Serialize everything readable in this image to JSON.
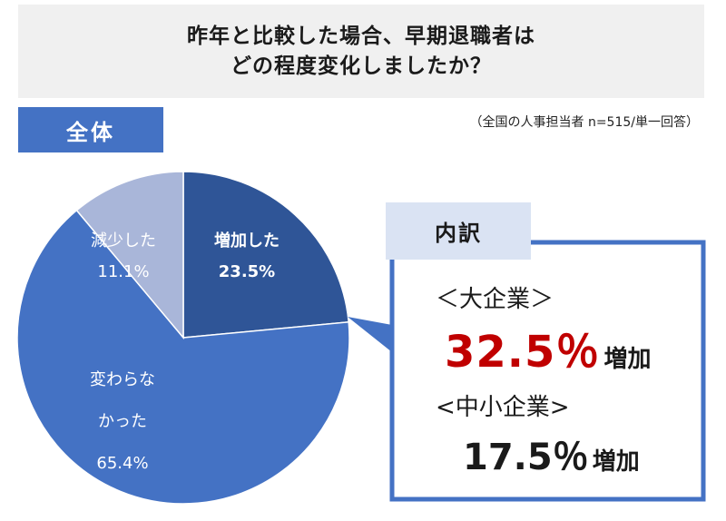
{
  "title": {
    "line1": "昨年と比較した場合、早期退職者は",
    "line2": "どの程度変化しましたか？"
  },
  "badge": "全体",
  "note": "（全国の人事担当者 n=515/単一回答）",
  "chart_data": {
    "type": "pie",
    "slices": [
      {
        "label": "増加した",
        "value": 23.5,
        "display": "23.5%",
        "color": "#2f5597"
      },
      {
        "label": "変わらなかった",
        "label_lines": [
          "変わらな",
          "かった"
        ],
        "value": 65.4,
        "display": "65.4%",
        "color": "#4472c4"
      },
      {
        "label": "減少した",
        "value": 11.1,
        "display": "11.1%",
        "color": "#a9b6d9"
      }
    ],
    "start": "12 o'clock",
    "direction": "clockwise"
  },
  "breakdown": {
    "header": "内訳",
    "border_color": "#4472c4",
    "items": [
      {
        "category": "＜大企業＞",
        "value": "32.5％",
        "suffix": "増加"
      },
      {
        "category": "<中小企業>",
        "value": "17.5％",
        "suffix": "増加"
      }
    ]
  }
}
